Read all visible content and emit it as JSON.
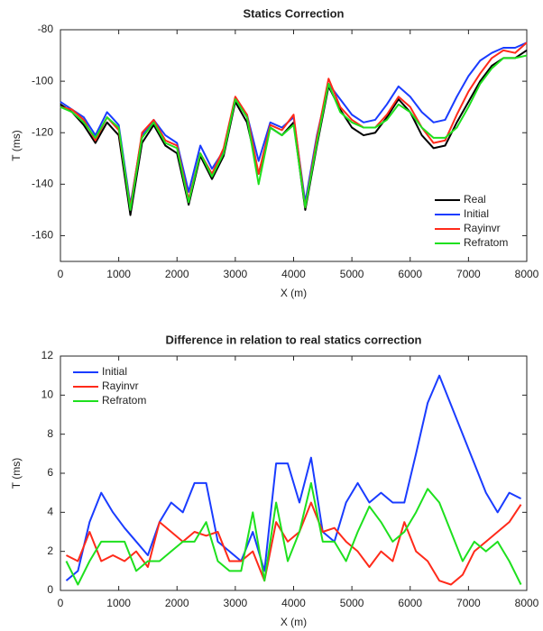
{
  "chart_data": [
    {
      "type": "line",
      "title": "Statics Correction",
      "xlabel": "X (m)",
      "ylabel": "T (ms)",
      "x": [
        0,
        200,
        400,
        600,
        800,
        1000,
        1200,
        1400,
        1600,
        1800,
        2000,
        2200,
        2400,
        2600,
        2800,
        3000,
        3200,
        3400,
        3600,
        3800,
        4000,
        4200,
        4400,
        4600,
        4800,
        5000,
        5200,
        5400,
        5600,
        5800,
        6000,
        6200,
        6400,
        6600,
        6800,
        7000,
        7200,
        7400,
        7600,
        7800,
        8000
      ],
      "xlim": [
        0,
        8000
      ],
      "xticks": [
        0,
        1000,
        2000,
        3000,
        4000,
        5000,
        6000,
        7000,
        8000
      ],
      "ylim": [
        -170,
        -80
      ],
      "yticks": [
        -160,
        -140,
        -120,
        -100,
        -80
      ],
      "legend": "lower right",
      "series": [
        {
          "name": "Real",
          "color": "#000000",
          "values": [
            -109,
            -112,
            -117,
            -124,
            -116,
            -121,
            -152,
            -124,
            -117,
            -125,
            -128,
            -148,
            -129,
            -138,
            -129,
            -108,
            -116,
            -136,
            -118,
            -121,
            -116,
            -150,
            -125,
            -102,
            -111,
            -118,
            -121,
            -120,
            -114,
            -107,
            -112,
            -121,
            -126,
            -125,
            -116,
            -108,
            -100,
            -94,
            -91,
            -91,
            -88
          ]
        },
        {
          "name": "Initial",
          "color": "#1a3cff",
          "values": [
            -108,
            -111,
            -114,
            -121,
            -112,
            -117,
            -148,
            -121,
            -115,
            -121,
            -124,
            -143,
            -125,
            -134,
            -127,
            -107,
            -113,
            -131,
            -116,
            -118,
            -114,
            -147,
            -121,
            -101,
            -107,
            -113,
            -116,
            -115,
            -109,
            -102,
            -106,
            -112,
            -116,
            -115,
            -106,
            -98,
            -92,
            -89,
            -87,
            -87,
            -85
          ]
        },
        {
          "name": "Rayinvr",
          "color": "#ff2a1a",
          "values": [
            -110,
            -111,
            -115,
            -123,
            -114,
            -119,
            -149,
            -120,
            -115,
            -123,
            -125,
            -146,
            -128,
            -136,
            -126,
            -106,
            -113,
            -136,
            -117,
            -119,
            -113,
            -149,
            -122,
            -99,
            -110,
            -115,
            -118,
            -118,
            -113,
            -106,
            -110,
            -118,
            -124,
            -123,
            -113,
            -104,
            -97,
            -91,
            -88,
            -89,
            -85
          ]
        },
        {
          "name": "Refratom",
          "color": "#1ee01e",
          "values": [
            -110,
            -112,
            -116,
            -122,
            -114,
            -118,
            -150,
            -122,
            -116,
            -124,
            -126,
            -147,
            -128,
            -137,
            -128,
            -107,
            -114,
            -140,
            -118,
            -121,
            -117,
            -149,
            -124,
            -101,
            -112,
            -116,
            -118,
            -118,
            -115,
            -109,
            -112,
            -118,
            -122,
            -122,
            -118,
            -110,
            -101,
            -95,
            -91,
            -91,
            -90
          ]
        }
      ]
    },
    {
      "type": "line",
      "title": "Difference in relation to real statics correction",
      "xlabel": "X (m)",
      "ylabel": "T (ms)",
      "x": [
        100,
        300,
        500,
        700,
        900,
        1100,
        1300,
        1500,
        1700,
        1900,
        2100,
        2300,
        2500,
        2700,
        2900,
        3100,
        3300,
        3500,
        3700,
        3900,
        4100,
        4300,
        4500,
        4700,
        4900,
        5100,
        5300,
        5500,
        5700,
        5900,
        6100,
        6300,
        6500,
        6700,
        6900,
        7100,
        7300,
        7500,
        7700,
        7900
      ],
      "xlim": [
        0,
        8000
      ],
      "xticks": [
        0,
        1000,
        2000,
        3000,
        4000,
        5000,
        6000,
        7000,
        8000
      ],
      "ylim": [
        0,
        12
      ],
      "yticks": [
        0,
        2,
        4,
        6,
        8,
        10,
        12
      ],
      "legend": "upper left",
      "series": [
        {
          "name": "Initial",
          "color": "#1a3cff",
          "values": [
            0.5,
            1.0,
            3.5,
            5.0,
            4.0,
            3.2,
            2.5,
            1.8,
            3.5,
            4.5,
            4.0,
            5.5,
            5.5,
            2.5,
            2.0,
            1.5,
            3.0,
            1.0,
            6.5,
            6.5,
            4.5,
            6.8,
            3.0,
            2.5,
            4.5,
            5.5,
            4.5,
            5.0,
            4.5,
            4.5,
            7.0,
            9.6,
            11.0,
            9.5,
            8.0,
            6.5,
            5.0,
            4.0,
            5.0,
            4.7
          ]
        },
        {
          "name": "Rayinvr",
          "color": "#ff2a1a",
          "values": [
            1.8,
            1.5,
            3.0,
            1.5,
            1.8,
            1.5,
            2.0,
            1.2,
            3.5,
            3.0,
            2.5,
            3.0,
            2.8,
            3.0,
            1.5,
            1.5,
            2.0,
            0.5,
            3.5,
            2.5,
            3.0,
            4.5,
            3.0,
            3.2,
            2.5,
            2.0,
            1.2,
            2.0,
            1.5,
            3.5,
            2.0,
            1.5,
            0.5,
            0.3,
            0.8,
            2.0,
            2.5,
            3.0,
            3.5,
            4.4
          ]
        },
        {
          "name": "Refratom",
          "color": "#1ee01e",
          "values": [
            1.5,
            0.3,
            1.5,
            2.5,
            2.5,
            2.5,
            1.0,
            1.5,
            1.5,
            2.0,
            2.5,
            2.5,
            3.5,
            1.5,
            1.0,
            1.0,
            4.0,
            0.5,
            4.5,
            1.5,
            3.0,
            5.5,
            2.5,
            2.5,
            1.5,
            3.0,
            4.3,
            3.5,
            2.5,
            3.0,
            4.0,
            5.2,
            4.5,
            3.0,
            1.5,
            2.5,
            2.0,
            2.5,
            1.5,
            0.3
          ]
        }
      ]
    }
  ]
}
